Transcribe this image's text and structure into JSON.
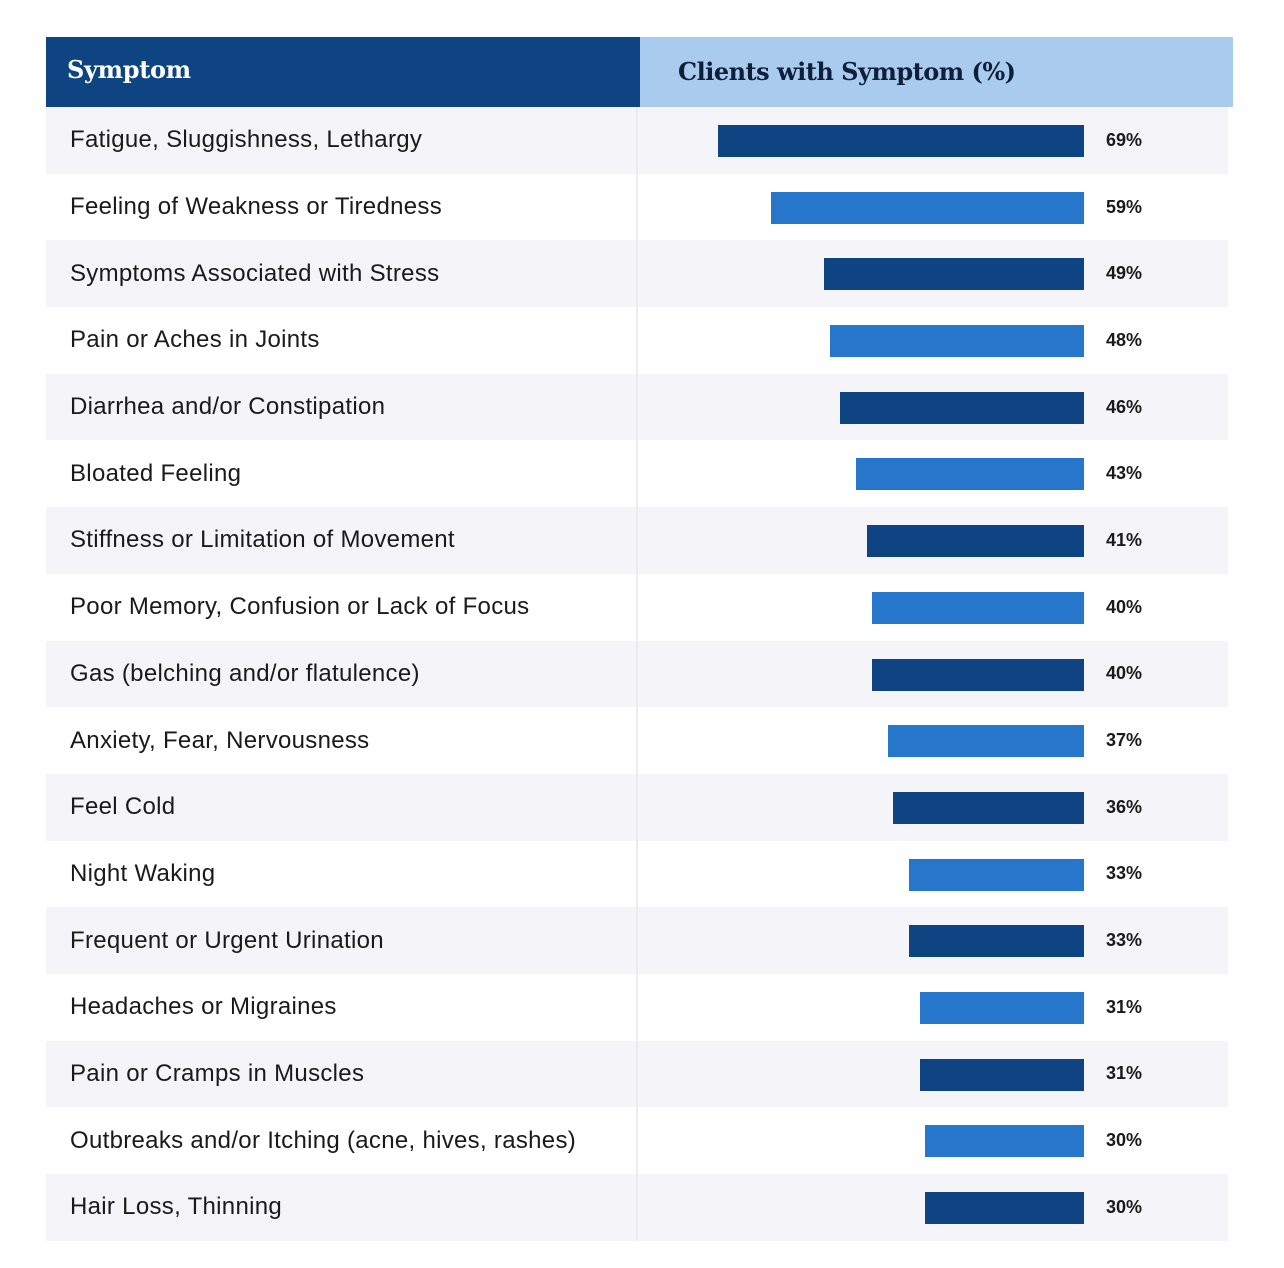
{
  "header": {
    "symptom_label": "Symptom",
    "clients_label": "Clients with Symptom (%)"
  },
  "colors": {
    "header_left_bg": "#0d4481",
    "header_right_bg": "#a9cbee",
    "bar_dark": "#0d4481",
    "bar_light": "#2677cb",
    "row_odd_bg": "#f5f5f9",
    "row_even_bg": "#ffffff"
  },
  "chart_data": {
    "type": "bar",
    "orientation": "horizontal",
    "xlabel": "Clients with Symptom (%)",
    "ylabel": "Symptom",
    "xlim": [
      0,
      100
    ],
    "categories": [
      "Fatigue, Sluggishness, Lethargy",
      "Feeling of Weakness or Tiredness",
      "Symptoms Associated with Stress",
      "Pain or Aches in Joints",
      "Diarrhea and/or Constipation",
      "Bloated Feeling",
      "Stiffness or Limitation of Movement",
      "Poor Memory, Confusion or Lack of Focus",
      "Gas (belching and/or flatulence)",
      "Anxiety, Fear, Nervousness",
      "Feel Cold",
      "Night Waking",
      "Frequent or Urgent Urination",
      "Headaches or Migraines",
      "Pain or Cramps in Muscles",
      "Outbreaks and/or Itching (acne, hives, rashes)",
      "Hair Loss, Thinning"
    ],
    "values": [
      69,
      59,
      49,
      48,
      46,
      43,
      41,
      40,
      40,
      37,
      36,
      33,
      33,
      31,
      31,
      30,
      30
    ],
    "value_labels": [
      "69%",
      "59%",
      "49%",
      "48%",
      "46%",
      "43%",
      "41%",
      "40%",
      "40%",
      "37%",
      "36%",
      "33%",
      "33%",
      "31%",
      "31%",
      "30%",
      "30%"
    ]
  }
}
